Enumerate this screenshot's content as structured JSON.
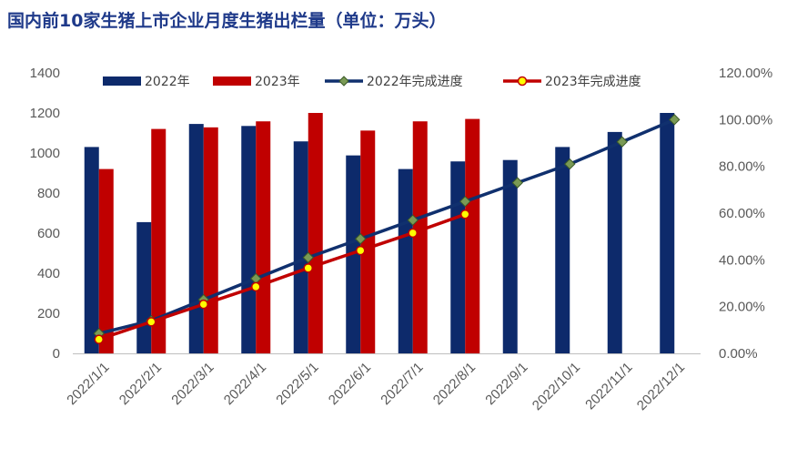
{
  "chart_data": {
    "type": "bar",
    "title": "国内前10家生猪上市企业月度生猪出栏量（单位：万头）",
    "categories": [
      "2022/1/1",
      "2022/2/1",
      "2022/3/1",
      "2022/4/1",
      "2022/5/1",
      "2022/6/1",
      "2022/7/1",
      "2022/8/1",
      "2022/9/1",
      "2022/10/1",
      "2022/11/1",
      "2022/12/1"
    ],
    "y_left": {
      "ylim": [
        0,
        1400
      ],
      "ticks": [
        "0",
        "200",
        "400",
        "600",
        "800",
        "1000",
        "1200",
        "1400"
      ]
    },
    "y_right": {
      "ylim": [
        0,
        1.2
      ],
      "ticks": [
        "0.00%",
        "20.00%",
        "40.00%",
        "60.00%",
        "80.00%",
        "100.00%",
        "120.00%"
      ]
    },
    "series": [
      {
        "name": "2022年",
        "kind": "bar",
        "axis": "left",
        "color": "#0d2a6b",
        "values": [
          1030,
          655,
          1145,
          1135,
          1058,
          988,
          920,
          958,
          965,
          1030,
          1105,
          1200
        ]
      },
      {
        "name": "2023年",
        "kind": "bar",
        "axis": "left",
        "color": "#c00000",
        "values": [
          920,
          1120,
          1128,
          1158,
          1200,
          1112,
          1158,
          1170,
          null,
          null,
          null,
          null
        ]
      },
      {
        "name": "2022年完成进度",
        "kind": "line",
        "axis": "right",
        "color": "#10306e",
        "marker_color": "#7a9a55",
        "values": [
          0.085,
          0.14,
          0.23,
          0.32,
          0.41,
          0.49,
          0.57,
          0.65,
          0.73,
          0.81,
          0.905,
          1.0
        ]
      },
      {
        "name": "2023年完成进度",
        "kind": "line",
        "axis": "right",
        "color": "#c00000",
        "marker_color": "#ffff00",
        "values": [
          0.06,
          0.135,
          0.21,
          0.285,
          0.365,
          0.44,
          0.515,
          0.595,
          null,
          null,
          null,
          null
        ]
      }
    ],
    "legend": "top",
    "grid": false
  }
}
